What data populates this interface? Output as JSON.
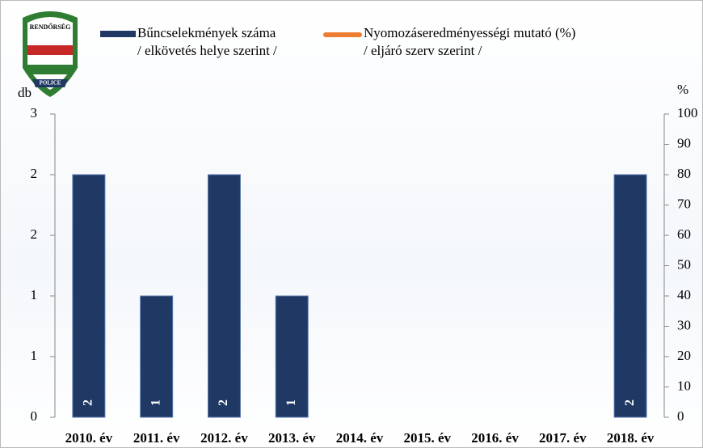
{
  "logo": {
    "top": "RENDŐRSÉG",
    "bottom": "POLICE"
  },
  "chart_data": {
    "type": "bar",
    "categories": [
      "2010. év",
      "2011. év",
      "2012. év",
      "2013. év",
      "2014. év",
      "2015. év",
      "2016. év",
      "2017. év",
      "2018. év"
    ],
    "series": [
      {
        "name": "Bűncselekmények száma\n/ elkövetés helye szerint /",
        "color": "#1f3864",
        "type": "bar",
        "values": [
          2,
          1,
          2,
          1,
          null,
          null,
          null,
          null,
          2
        ]
      },
      {
        "name": "Nyomozáseredményességi mutató (%)\n/ eljáró szerv szerint /",
        "color": "#ed7d31",
        "type": "line",
        "axis": "y2",
        "values": [
          null,
          null,
          null,
          null,
          null,
          null,
          null,
          null,
          null
        ]
      }
    ],
    "ylabel": "db",
    "y2label": "%",
    "ylim": [
      0,
      2.5
    ],
    "yticks": [
      0,
      {
        "value": 0.5,
        "label": "1"
      },
      1,
      {
        "value": 1.5,
        "label": "2"
      },
      2,
      {
        "value": 2.5,
        "label": "3"
      }
    ],
    "y2lim": [
      0,
      100
    ],
    "y2ticks": [
      0,
      10,
      20,
      30,
      40,
      50,
      60,
      70,
      80,
      90,
      100
    ]
  }
}
